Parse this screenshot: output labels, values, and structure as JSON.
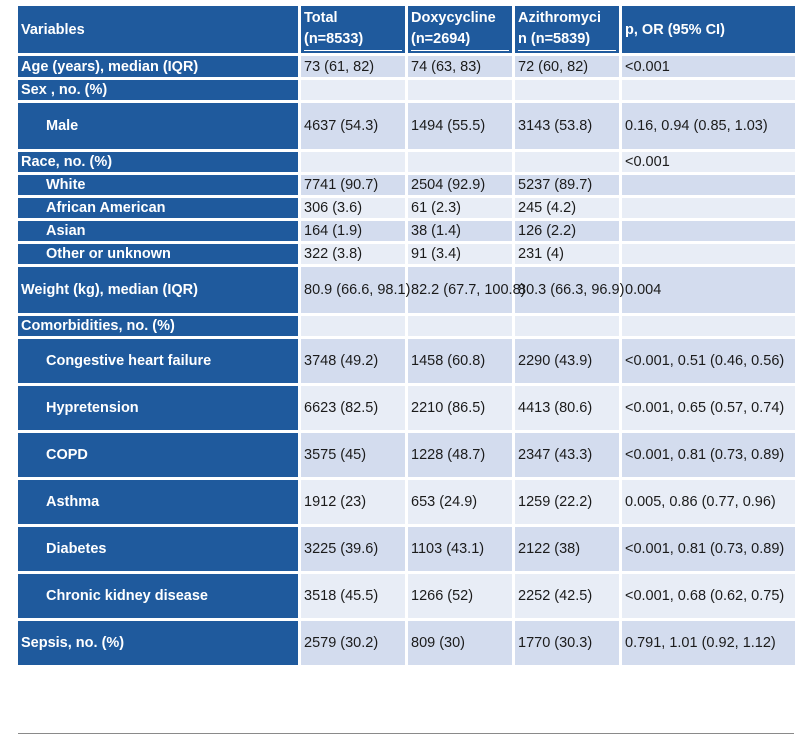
{
  "table": {
    "headers": {
      "variables": "Variables",
      "total_line1": "Total",
      "total_line2": "(n=8533)",
      "doxy_line1": "Doxycycline",
      "doxy_line2": "(n=2694)",
      "azi_line1": "Azithromyci",
      "azi_line2": "n (n=5839)",
      "p": "p, OR (95% CI)"
    },
    "rows": [
      {
        "label": "Age (years),  median (IQR)",
        "total": "73 (61, 82)",
        "doxy": "74 (63, 83)",
        "azi": "72 (60, 82)",
        "p": "<0.001"
      },
      {
        "label": "Sex , no. (%)",
        "total": "",
        "doxy": "",
        "azi": "",
        "p": ""
      },
      {
        "label": "Male",
        "total": "4637 (54.3)",
        "doxy": "1494 (55.5)",
        "azi": "3143 (53.8)",
        "p": "0.16, 0.94 (0.85, 1.03)"
      },
      {
        "label": "Race, no. (%)",
        "total": "",
        "doxy": "",
        "azi": "",
        "p": "<0.001"
      },
      {
        "label": "White",
        "total": "7741 (90.7)",
        "doxy": "2504 (92.9)",
        "azi": "5237 (89.7)",
        "p": ""
      },
      {
        "label": "African American",
        "total": "306 (3.6)",
        "doxy": "61 (2.3)",
        "azi": "245 (4.2)",
        "p": ""
      },
      {
        "label": "Asian",
        "total": "164 (1.9)",
        "doxy": "38 (1.4)",
        "azi": "126 (2.2)",
        "p": ""
      },
      {
        "label": "Other or unknown",
        "total": "322 (3.8)",
        "doxy": "91 (3.4)",
        "azi": "231 (4)",
        "p": ""
      },
      {
        "label": "Weight (kg),  median (IQR)",
        "total": "80.9 (66.6, 98.1)",
        "doxy": "82.2 (67.7, 100.8)",
        "azi": "80.3 (66.3, 96.9)",
        "p": "0.004"
      },
      {
        "label": "Comorbidities, no. (%)",
        "total": "",
        "doxy": "",
        "azi": "",
        "p": ""
      },
      {
        "label": "Congestive heart failure",
        "total": "3748 (49.2)",
        "doxy": "1458 (60.8)",
        "azi": "2290 (43.9)",
        "p": "<0.001, 0.51 (0.46, 0.56)"
      },
      {
        "label": "Hypretension",
        "total": "6623 (82.5)",
        "doxy": "2210 (86.5)",
        "azi": "4413 (80.6)",
        "p": "<0.001, 0.65 (0.57, 0.74)"
      },
      {
        "label": "COPD",
        "total": "3575 (45)",
        "doxy": "1228 (48.7)",
        "azi": "2347 (43.3)",
        "p": "<0.001, 0.81 (0.73, 0.89)"
      },
      {
        "label": "Asthma",
        "total": "1912 (23)",
        "doxy": "653 (24.9)",
        "azi": "1259 (22.2)",
        "p": "0.005, 0.86 (0.77, 0.96)"
      },
      {
        "label": "Diabetes",
        "total": "3225 (39.6)",
        "doxy": "1103 (43.1)",
        "azi": "2122 (38)",
        "p": "<0.001, 0.81 (0.73, 0.89)"
      },
      {
        "label": "Chronic kidney disease",
        "total": "3518 (45.5)",
        "doxy": "1266 (52)",
        "azi": "2252 (42.5)",
        "p": "<0.001, 0.68 (0.62, 0.75)"
      },
      {
        "label": "Sepsis, no. (%)",
        "total": "2579 (30.2)",
        "doxy": "809 (30)",
        "azi": "1770 (30.3)",
        "p": "0.791, 1.01 (0.92, 1.12)"
      }
    ]
  },
  "colors": {
    "header_blue": "#1f5a9d",
    "cell_dark": "#d3dcee",
    "cell_light": "#e8edf6"
  }
}
